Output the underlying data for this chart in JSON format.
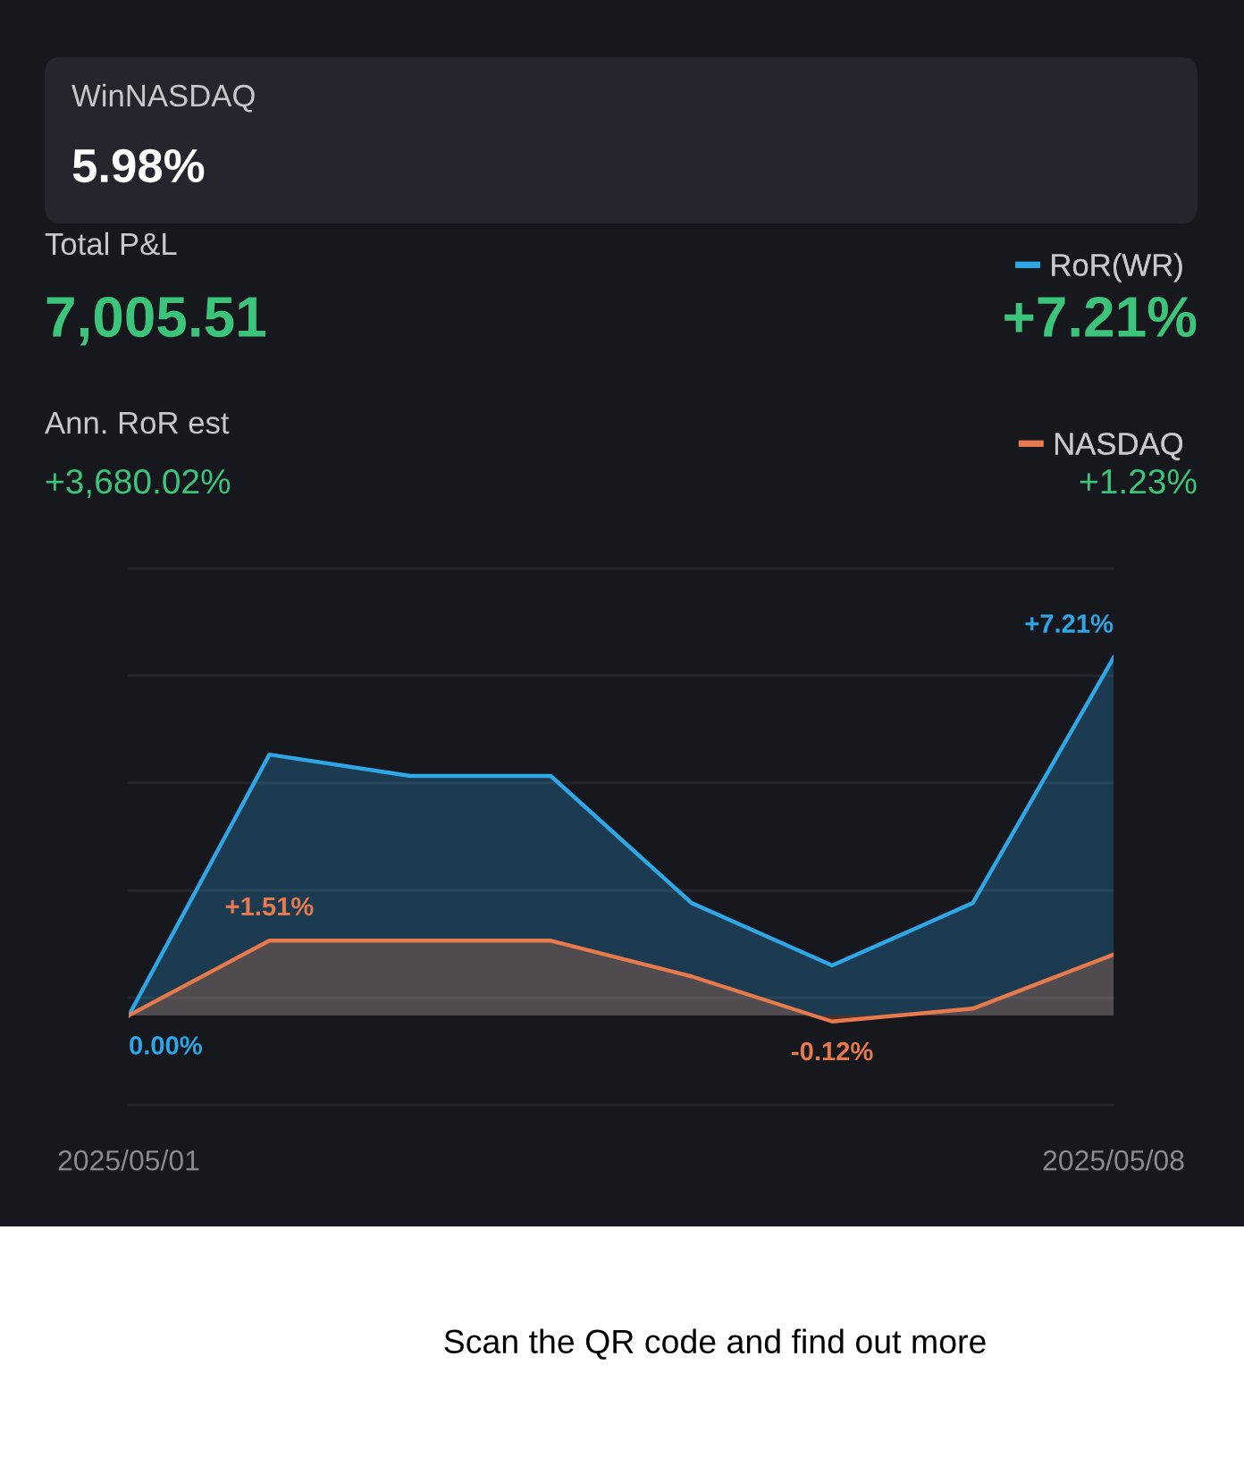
{
  "chart_data": {
    "type": "area",
    "categories": [
      "2025/05/01",
      null,
      null,
      null,
      null,
      null,
      null,
      "2025/05/08"
    ],
    "series": [
      {
        "name": "RoR(WR)",
        "color": "#2ea7e6",
        "values": [
          0.0,
          5.26,
          4.83,
          4.83,
          2.27,
          1.01,
          2.27,
          7.21
        ],
        "value_labels": [
          "0.00%",
          null,
          null,
          null,
          null,
          null,
          null,
          "+7.21%"
        ]
      },
      {
        "name": "NASDAQ",
        "color": "#e67a4c",
        "values": [
          0.0,
          1.51,
          1.51,
          1.51,
          0.79,
          -0.12,
          0.14,
          1.23
        ],
        "value_labels": [
          null,
          "+1.51%",
          null,
          null,
          null,
          "-0.12%",
          null,
          null
        ]
      }
    ],
    "ylim": [
      -1.8,
      9.01
    ],
    "yticks": [
      {
        "value": 9.01,
        "label": null
      },
      {
        "value": 6.85,
        "label": null
      },
      {
        "value": 4.69,
        "label": null
      },
      {
        "value": 2.52,
        "label": null
      },
      {
        "value": 0.36,
        "label": null
      },
      {
        "value": -1.8,
        "label": null
      }
    ],
    "grid": "y",
    "legend": "top right",
    "annotations": [
      "WinNASDAQ",
      "5.98%",
      "Total P&L",
      "7,005.51",
      "Ann. RoR est",
      "+3,680.02%",
      "+7.21%",
      "+1.23%",
      "Scan the QR code and find out more"
    ]
  }
}
